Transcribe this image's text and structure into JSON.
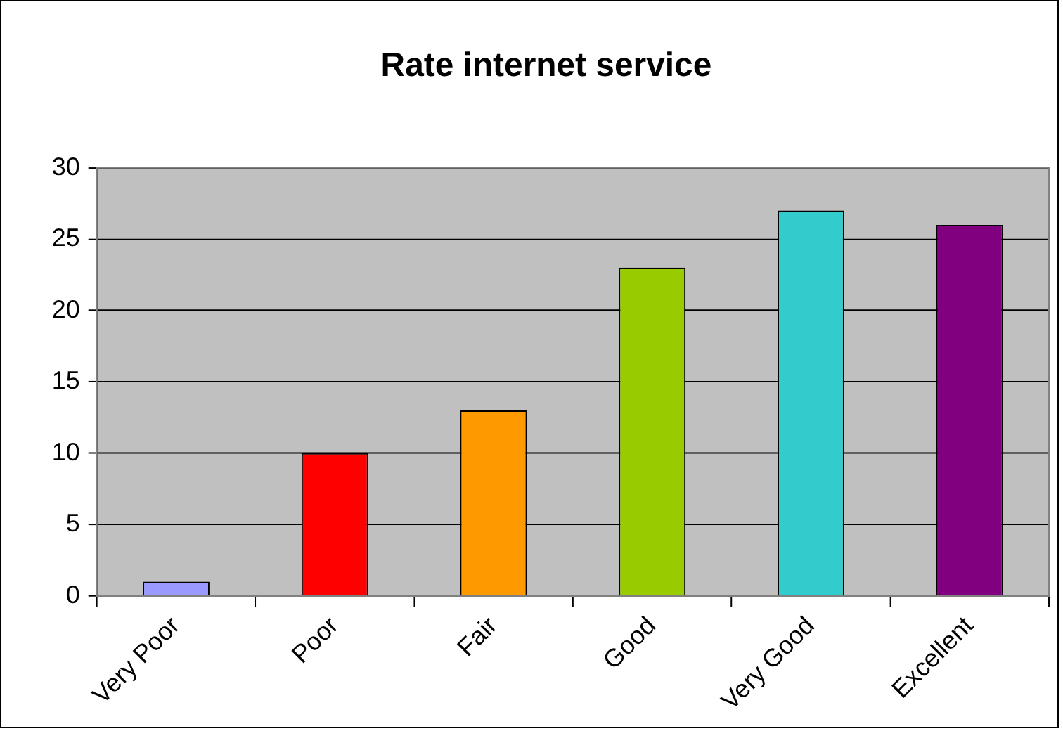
{
  "chart_data": {
    "type": "bar",
    "title": "Rate internet service",
    "categories": [
      "Very Poor",
      "Poor",
      "Fair",
      "Good",
      "Very Good",
      "Excellent"
    ],
    "values": [
      1,
      10,
      13,
      23,
      27,
      26
    ],
    "colors": [
      "#9999ff",
      "#ff0000",
      "#ff9900",
      "#99cc00",
      "#33cccc",
      "#800080"
    ],
    "ylim": [
      0,
      30
    ],
    "yticks": [
      0,
      5,
      10,
      15,
      20,
      25,
      30
    ],
    "grid": "y",
    "legend": false
  }
}
